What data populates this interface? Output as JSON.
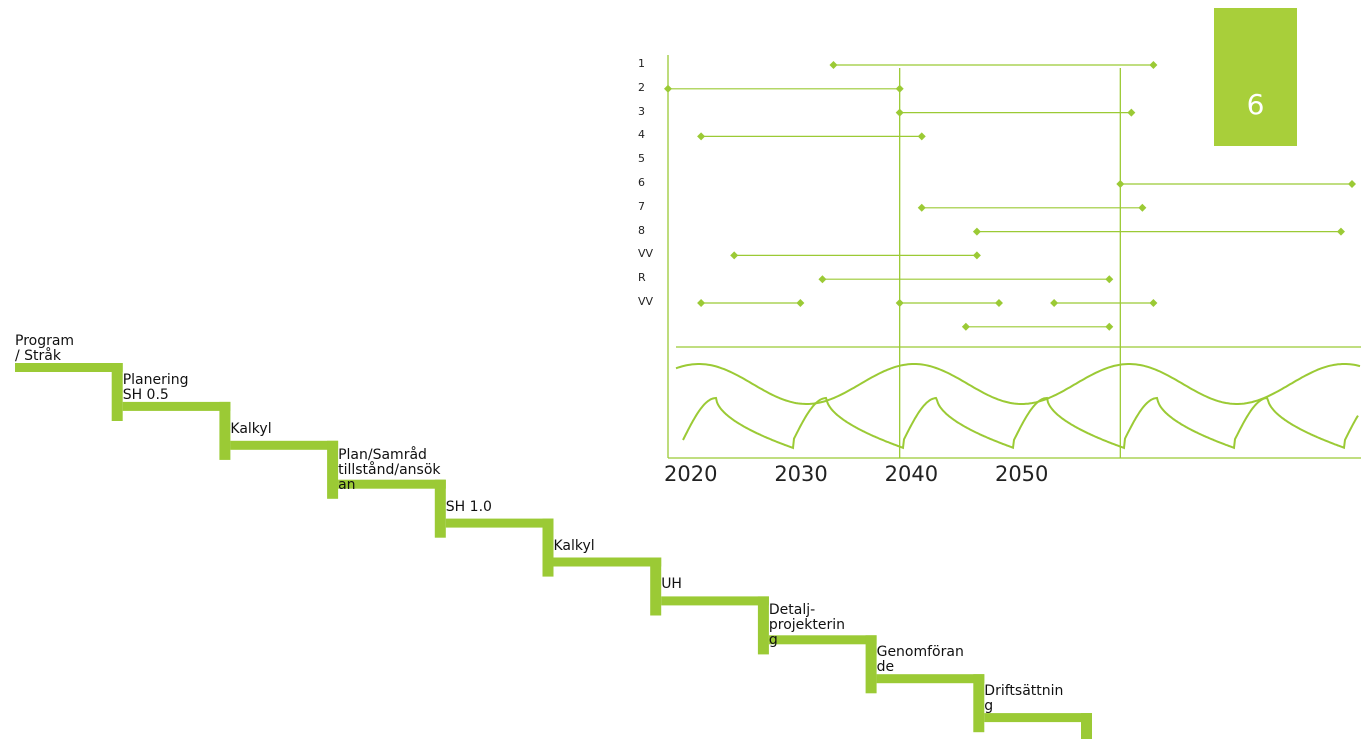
{
  "colors": {
    "accent": "#9bca35",
    "chart_line": "#9bca35",
    "badge": "#a8cf3a",
    "text": "#111111"
  },
  "page_number": "6",
  "stairs": {
    "steps": [
      "Program\n/ Stråk",
      "Planering\nSH 0.5",
      "Kalkyl",
      "Plan/Samråd\ntillstånd/ansök\nan",
      "SH 1.0",
      "Kalkyl",
      "UH",
      "Detalj-\nprojekterin\ng",
      "Genomföran\nde",
      "Driftsättnin\ng"
    ]
  },
  "chart_data": {
    "type": "gantt",
    "x_tick_labels": [
      "2020",
      "2030",
      "2040",
      "2050"
    ],
    "x_ticks": [
      2020,
      2030,
      2040,
      2050
    ],
    "xlim": [
      2020,
      2082
    ],
    "vertical_markers": [
      2041,
      2061
    ],
    "rows": [
      {
        "label": "1",
        "segments": [
          [
            2035,
            2064
          ]
        ]
      },
      {
        "label": "2",
        "segments": [
          [
            2020,
            2041
          ]
        ]
      },
      {
        "label": "3",
        "segments": [
          [
            2041,
            2062
          ]
        ]
      },
      {
        "label": "4",
        "segments": [
          [
            2023,
            2043
          ]
        ]
      },
      {
        "label": "5",
        "segments": []
      },
      {
        "label": "6",
        "segments": [
          [
            2061,
            2082
          ]
        ]
      },
      {
        "label": "7",
        "segments": [
          [
            2043,
            2063
          ]
        ]
      },
      {
        "label": "8",
        "segments": [
          [
            2048,
            2081
          ]
        ]
      },
      {
        "label": "VV",
        "segments": [
          [
            2026,
            2048
          ]
        ]
      },
      {
        "label": "R",
        "segments": [
          [
            2034,
            2060
          ]
        ]
      },
      {
        "label": "VV",
        "segments": [
          [
            2023,
            2032
          ],
          [
            2041,
            2050
          ],
          [
            2055,
            2064
          ]
        ]
      },
      {
        "label": "",
        "segments": [
          [
            2047,
            2060
          ]
        ]
      }
    ],
    "wave": {
      "long_wave_period_years": 19.5,
      "sawtooth_period_years": 10
    }
  }
}
